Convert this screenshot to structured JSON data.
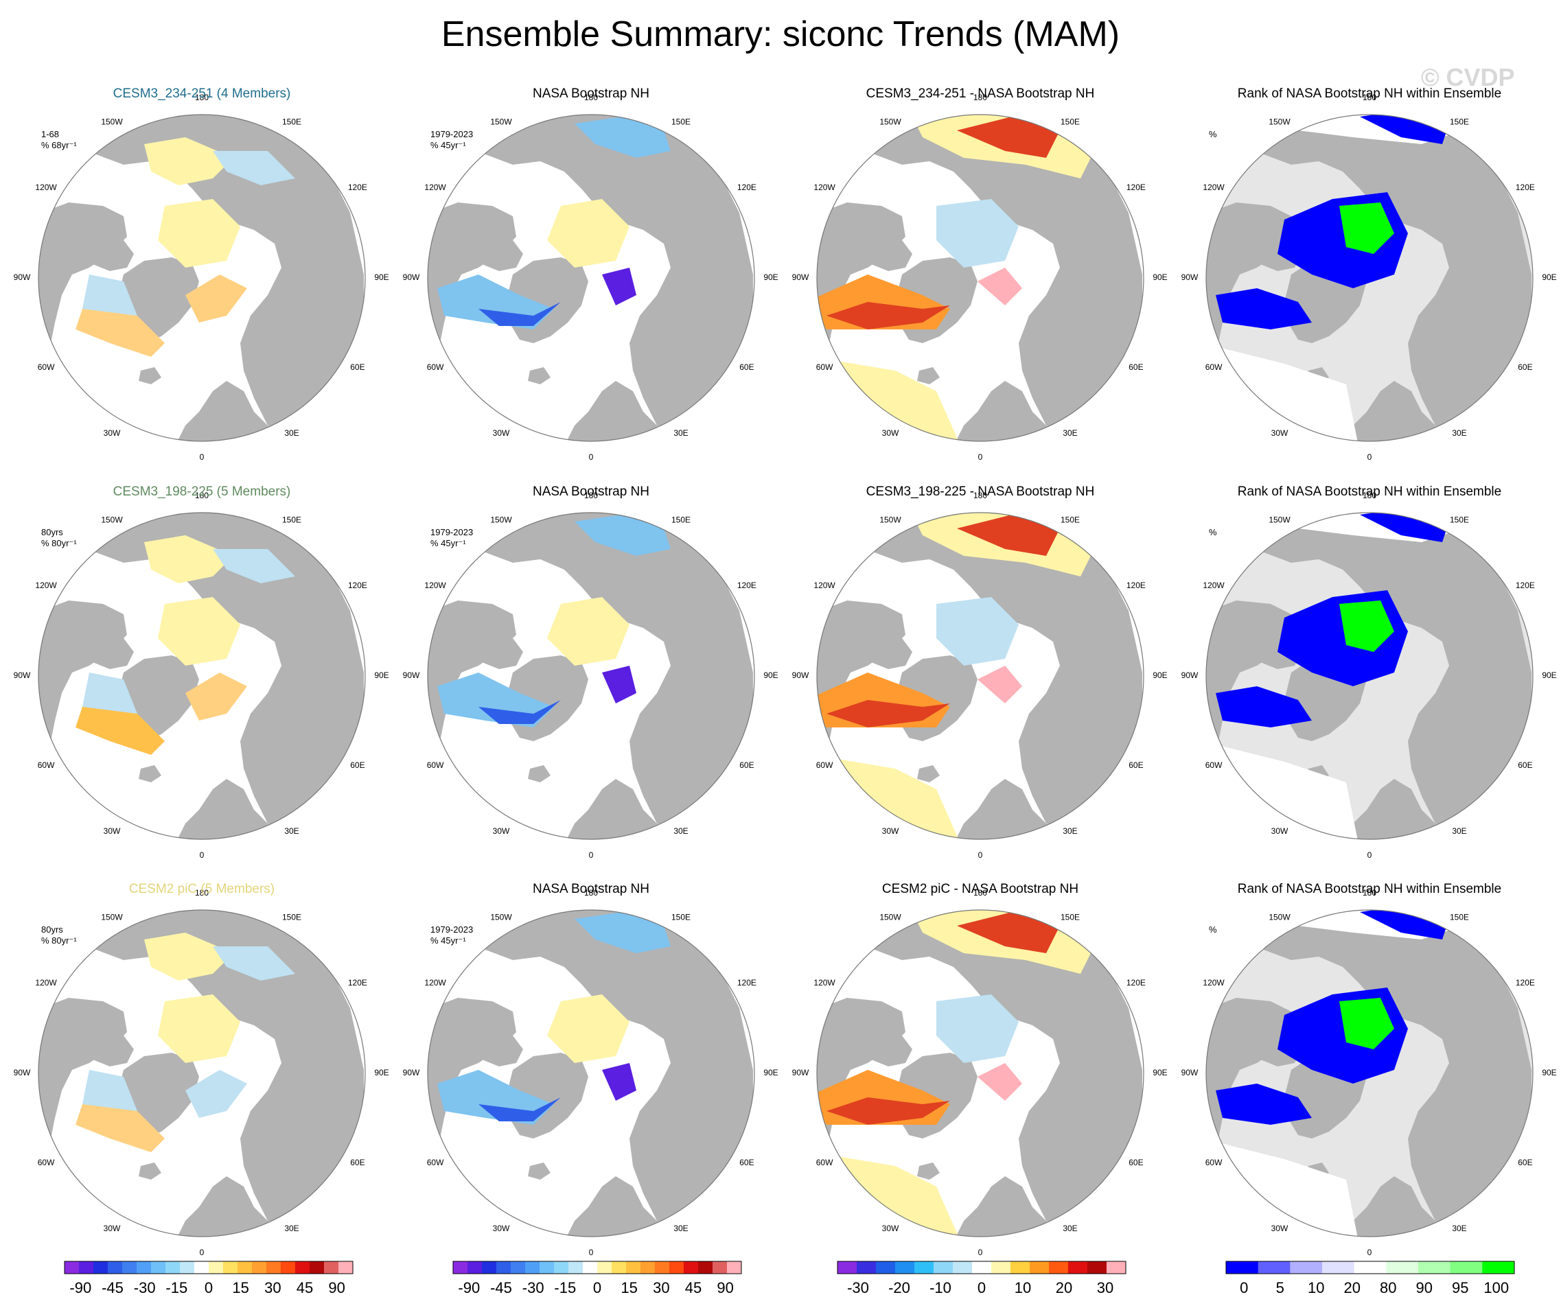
{
  "figure": {
    "title": "Ensemble Summary: siconc Trends (MAM)",
    "watermark": "© CVDP"
  },
  "colors": {
    "land": "#b3b3b3",
    "ocean_blank": "#ffffff",
    "title_cesm3_234": "#1f6e8c",
    "title_cesm3_198": "#5f8a5f",
    "title_cesm2_pic": "#e3d47a"
  },
  "longitude_labels": [
    "180",
    "150E",
    "120E",
    "90E",
    "60E",
    "30E",
    "0",
    "30W",
    "60W",
    "90W",
    "120W",
    "150W"
  ],
  "rows": [
    {
      "panels": [
        {
          "title": "CESM3_234-251 (4 Members)",
          "meta1": "1-68",
          "meta2": "% 68yr⁻¹",
          "kind": "trend_model",
          "title_color": "#1f6e8c"
        },
        {
          "title": "NASA Bootstrap NH",
          "meta1": "1979-2023",
          "meta2": "% 45yr⁻¹",
          "kind": "trend_obs",
          "title_color": "#000000"
        },
        {
          "title": "CESM3_234-251 - NASA Bootstrap NH",
          "meta1": "",
          "meta2": "",
          "kind": "diff",
          "title_color": "#000000"
        },
        {
          "title": "Rank of NASA Bootstrap NH within Ensemble",
          "meta1": "%",
          "meta2": "",
          "kind": "rank",
          "title_color": "#000000"
        }
      ]
    },
    {
      "panels": [
        {
          "title": "CESM3_198-225 (5 Members)",
          "meta1": "80yrs",
          "meta2": "% 80yr⁻¹",
          "kind": "trend_model",
          "title_color": "#5f8a5f"
        },
        {
          "title": "NASA Bootstrap NH",
          "meta1": "1979-2023",
          "meta2": "% 45yr⁻¹",
          "kind": "trend_obs",
          "title_color": "#000000"
        },
        {
          "title": "CESM3_198-225 - NASA Bootstrap NH",
          "meta1": "",
          "meta2": "",
          "kind": "diff",
          "title_color": "#000000"
        },
        {
          "title": "Rank of NASA Bootstrap NH within Ensemble",
          "meta1": "%",
          "meta2": "",
          "kind": "rank",
          "title_color": "#000000"
        }
      ]
    },
    {
      "panels": [
        {
          "title": "CESM2 piC (5 Members)",
          "meta1": "80yrs",
          "meta2": "% 80yr⁻¹",
          "kind": "trend_model",
          "title_color": "#e3d47a"
        },
        {
          "title": "NASA Bootstrap NH",
          "meta1": "1979-2023",
          "meta2": "% 45yr⁻¹",
          "kind": "trend_obs",
          "title_color": "#000000"
        },
        {
          "title": "CESM2 piC - NASA Bootstrap NH",
          "meta1": "",
          "meta2": "",
          "kind": "diff",
          "title_color": "#000000"
        },
        {
          "title": "Rank of NASA Bootstrap NH within Ensemble",
          "meta1": "%",
          "meta2": "",
          "kind": "rank",
          "title_color": "#000000"
        }
      ]
    }
  ],
  "colorbars": [
    {
      "kind": "trend",
      "labels": [
        "-90",
        "-45",
        "-30",
        "-15",
        "0",
        "15",
        "30",
        "45",
        "90"
      ],
      "colors": [
        "#8a2be2",
        "#5a1fe0",
        "#1f2fe0",
        "#2f5fe8",
        "#3f7ff0",
        "#4f9ff6",
        "#6fbff8",
        "#8fd7f8",
        "#bfe7f8",
        "#ffffff",
        "#fff7b0",
        "#ffe060",
        "#ffc040",
        "#ffa030",
        "#ff7a20",
        "#ff4a10",
        "#e01010",
        "#b00808",
        "#e06060",
        "#ffb0b8"
      ]
    },
    {
      "kind": "trend",
      "labels": [
        "-90",
        "-45",
        "-30",
        "-15",
        "0",
        "15",
        "30",
        "45",
        "90"
      ],
      "colors": [
        "#8a2be2",
        "#5a1fe0",
        "#1f2fe0",
        "#2f5fe8",
        "#3f7ff0",
        "#4f9ff6",
        "#6fbff8",
        "#8fd7f8",
        "#bfe7f8",
        "#ffffff",
        "#fff7b0",
        "#ffe060",
        "#ffc040",
        "#ffa030",
        "#ff7a20",
        "#ff4a10",
        "#e01010",
        "#b00808",
        "#e06060",
        "#ffb0b8"
      ]
    },
    {
      "kind": "diff",
      "labels": [
        "-30",
        "-20",
        "-10",
        "0",
        "10",
        "20",
        "30"
      ],
      "colors": [
        "#8a2be2",
        "#3a2fe0",
        "#1f5fe8",
        "#1f8ff0",
        "#2fbff8",
        "#8fd7f8",
        "#bfe7f8",
        "#ffffff",
        "#fff7b0",
        "#ffd040",
        "#ff9a20",
        "#ff5a10",
        "#e01010",
        "#b00808",
        "#ffb0b8"
      ]
    },
    {
      "kind": "rank",
      "labels": [
        "0",
        "5",
        "10",
        "20",
        "80",
        "90",
        "95",
        "100"
      ],
      "colors": [
        "#0000ff",
        "#6060ff",
        "#b0b0ff",
        "#e0e0ff",
        "#ffffff",
        "#e0ffe0",
        "#b0ffb0",
        "#80ff80",
        "#00ff00"
      ]
    }
  ]
}
